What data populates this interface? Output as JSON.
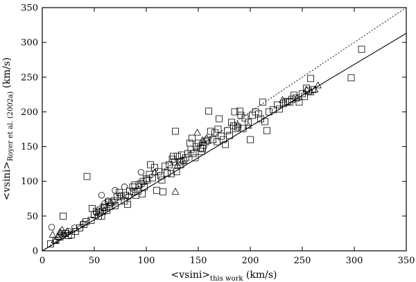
{
  "chart_data": {
    "type": "scatter",
    "title": "",
    "xlabel": {
      "main": "<vsini>",
      "sub": "this work",
      "unit": " (km/s)"
    },
    "ylabel": {
      "main": "<vsini>",
      "sub": "Royer et al. (2002a)",
      "unit": " (km/s)"
    },
    "xlim": [
      0,
      350
    ],
    "ylim": [
      0,
      350
    ],
    "xticks": [
      "0",
      "50",
      "100",
      "150",
      "200",
      "250",
      "300",
      "350"
    ],
    "yticks": [
      "0",
      "50",
      "100",
      "150",
      "200",
      "250",
      "300",
      "350"
    ],
    "grid": false,
    "legend": "none",
    "lines": [
      {
        "style": "dotted",
        "x": [
          0,
          350
        ],
        "y": [
          0,
          350
        ]
      },
      {
        "style": "solid",
        "x": [
          0,
          350
        ],
        "y": [
          0,
          313
        ]
      }
    ],
    "series": [
      {
        "marker": "square",
        "points": [
          [
            8,
            10
          ],
          [
            13,
            15
          ],
          [
            17,
            20
          ],
          [
            20,
            50
          ],
          [
            22,
            25
          ],
          [
            25,
            22
          ],
          [
            28,
            23
          ],
          [
            32,
            28
          ],
          [
            36,
            33
          ],
          [
            40,
            38
          ],
          [
            42,
            42
          ],
          [
            43,
            107
          ],
          [
            47,
            44
          ],
          [
            48,
            61
          ],
          [
            50,
            52
          ],
          [
            52,
            57
          ],
          [
            54,
            50
          ],
          [
            55,
            55
          ],
          [
            57,
            50
          ],
          [
            58,
            57
          ],
          [
            59,
            63
          ],
          [
            60,
            62
          ],
          [
            62,
            58
          ],
          [
            64,
            70
          ],
          [
            65,
            64
          ],
          [
            67,
            70
          ],
          [
            69,
            72
          ],
          [
            70,
            65
          ],
          [
            72,
            78
          ],
          [
            74,
            84
          ],
          [
            76,
            78
          ],
          [
            79,
            72
          ],
          [
            80,
            80
          ],
          [
            82,
            67
          ],
          [
            84,
            86
          ],
          [
            87,
            92
          ],
          [
            88,
            85
          ],
          [
            89,
            95
          ],
          [
            90,
            80
          ],
          [
            92,
            86
          ],
          [
            93,
            95
          ],
          [
            95,
            97
          ],
          [
            96,
            82
          ],
          [
            97,
            100
          ],
          [
            98,
            92
          ],
          [
            100,
            104
          ],
          [
            101,
            102
          ],
          [
            103,
            110
          ],
          [
            104,
            124
          ],
          [
            106,
            105
          ],
          [
            108,
            120
          ],
          [
            110,
            87
          ],
          [
            112,
            114
          ],
          [
            114,
            108
          ],
          [
            115,
            102
          ],
          [
            116,
            85
          ],
          [
            118,
            122
          ],
          [
            120,
            112
          ],
          [
            122,
            124
          ],
          [
            124,
            111
          ],
          [
            125,
            132
          ],
          [
            126,
            136
          ],
          [
            127,
            128
          ],
          [
            128,
            172
          ],
          [
            129,
            114
          ],
          [
            130,
            136
          ],
          [
            132,
            128
          ],
          [
            133,
            124
          ],
          [
            134,
            138
          ],
          [
            136,
            130
          ],
          [
            138,
            134
          ],
          [
            140,
            140
          ],
          [
            142,
            155
          ],
          [
            143,
            146
          ],
          [
            144,
            162
          ],
          [
            145,
            140
          ],
          [
            147,
            134
          ],
          [
            148,
            150
          ],
          [
            150,
            155
          ],
          [
            152,
            148
          ],
          [
            153,
            143
          ],
          [
            154,
            147
          ],
          [
            155,
            152
          ],
          [
            157,
            157
          ],
          [
            159,
            159
          ],
          [
            160,
            201
          ],
          [
            162,
            172
          ],
          [
            164,
            160
          ],
          [
            166,
            170
          ],
          [
            168,
            157
          ],
          [
            169,
            175
          ],
          [
            170,
            190
          ],
          [
            172,
            165
          ],
          [
            174,
            160
          ],
          [
            176,
            153
          ],
          [
            178,
            173
          ],
          [
            180,
            166
          ],
          [
            182,
            185
          ],
          [
            184,
            180
          ],
          [
            185,
            200
          ],
          [
            186,
            176
          ],
          [
            188,
            178
          ],
          [
            190,
            201
          ],
          [
            191,
            195
          ],
          [
            193,
            176
          ],
          [
            195,
            191
          ],
          [
            198,
            185
          ],
          [
            200,
            160
          ],
          [
            202,
            195
          ],
          [
            205,
            200
          ],
          [
            208,
            197
          ],
          [
            210,
            190
          ],
          [
            212,
            214
          ],
          [
            214,
            186
          ],
          [
            216,
            173
          ],
          [
            218,
            200
          ],
          [
            222,
            203
          ],
          [
            226,
            210
          ],
          [
            228,
            204
          ],
          [
            232,
            212
          ],
          [
            234,
            214
          ],
          [
            236,
            215
          ],
          [
            238,
            214
          ],
          [
            240,
            218
          ],
          [
            242,
            224
          ],
          [
            244,
            220
          ],
          [
            247,
            214
          ],
          [
            250,
            226
          ],
          [
            252,
            222
          ],
          [
            254,
            234
          ],
          [
            256,
            230
          ],
          [
            258,
            248
          ],
          [
            260,
            232
          ],
          [
            297,
            249
          ],
          [
            307,
            290
          ]
        ]
      },
      {
        "marker": "circle",
        "points": [
          [
            9,
            34
          ],
          [
            18,
            24
          ],
          [
            20,
            22
          ],
          [
            25,
            28
          ],
          [
            31,
            33
          ],
          [
            39,
            39
          ],
          [
            52,
            55
          ],
          [
            55,
            60
          ],
          [
            57,
            80
          ],
          [
            60,
            68
          ],
          [
            63,
            72
          ],
          [
            66,
            68
          ],
          [
            70,
            87
          ],
          [
            75,
            80
          ],
          [
            79,
            92
          ],
          [
            83,
            78
          ],
          [
            93,
            93
          ],
          [
            95,
            113
          ]
        ]
      },
      {
        "marker": "triangle",
        "points": [
          [
            10,
            23
          ],
          [
            12,
            15
          ],
          [
            15,
            20
          ],
          [
            17,
            27
          ],
          [
            19,
            30
          ],
          [
            21,
            25
          ],
          [
            24,
            28
          ],
          [
            108,
            113
          ],
          [
            128,
            85
          ],
          [
            130,
            123
          ],
          [
            135,
            130
          ],
          [
            149,
            170
          ],
          [
            154,
            159
          ],
          [
            158,
            162
          ],
          [
            188,
            181
          ],
          [
            198,
            180
          ],
          [
            231,
            217
          ],
          [
            245,
            220
          ],
          [
            254,
            232
          ],
          [
            258,
            228
          ],
          [
            262,
            232
          ],
          [
            265,
            238
          ]
        ]
      }
    ]
  }
}
